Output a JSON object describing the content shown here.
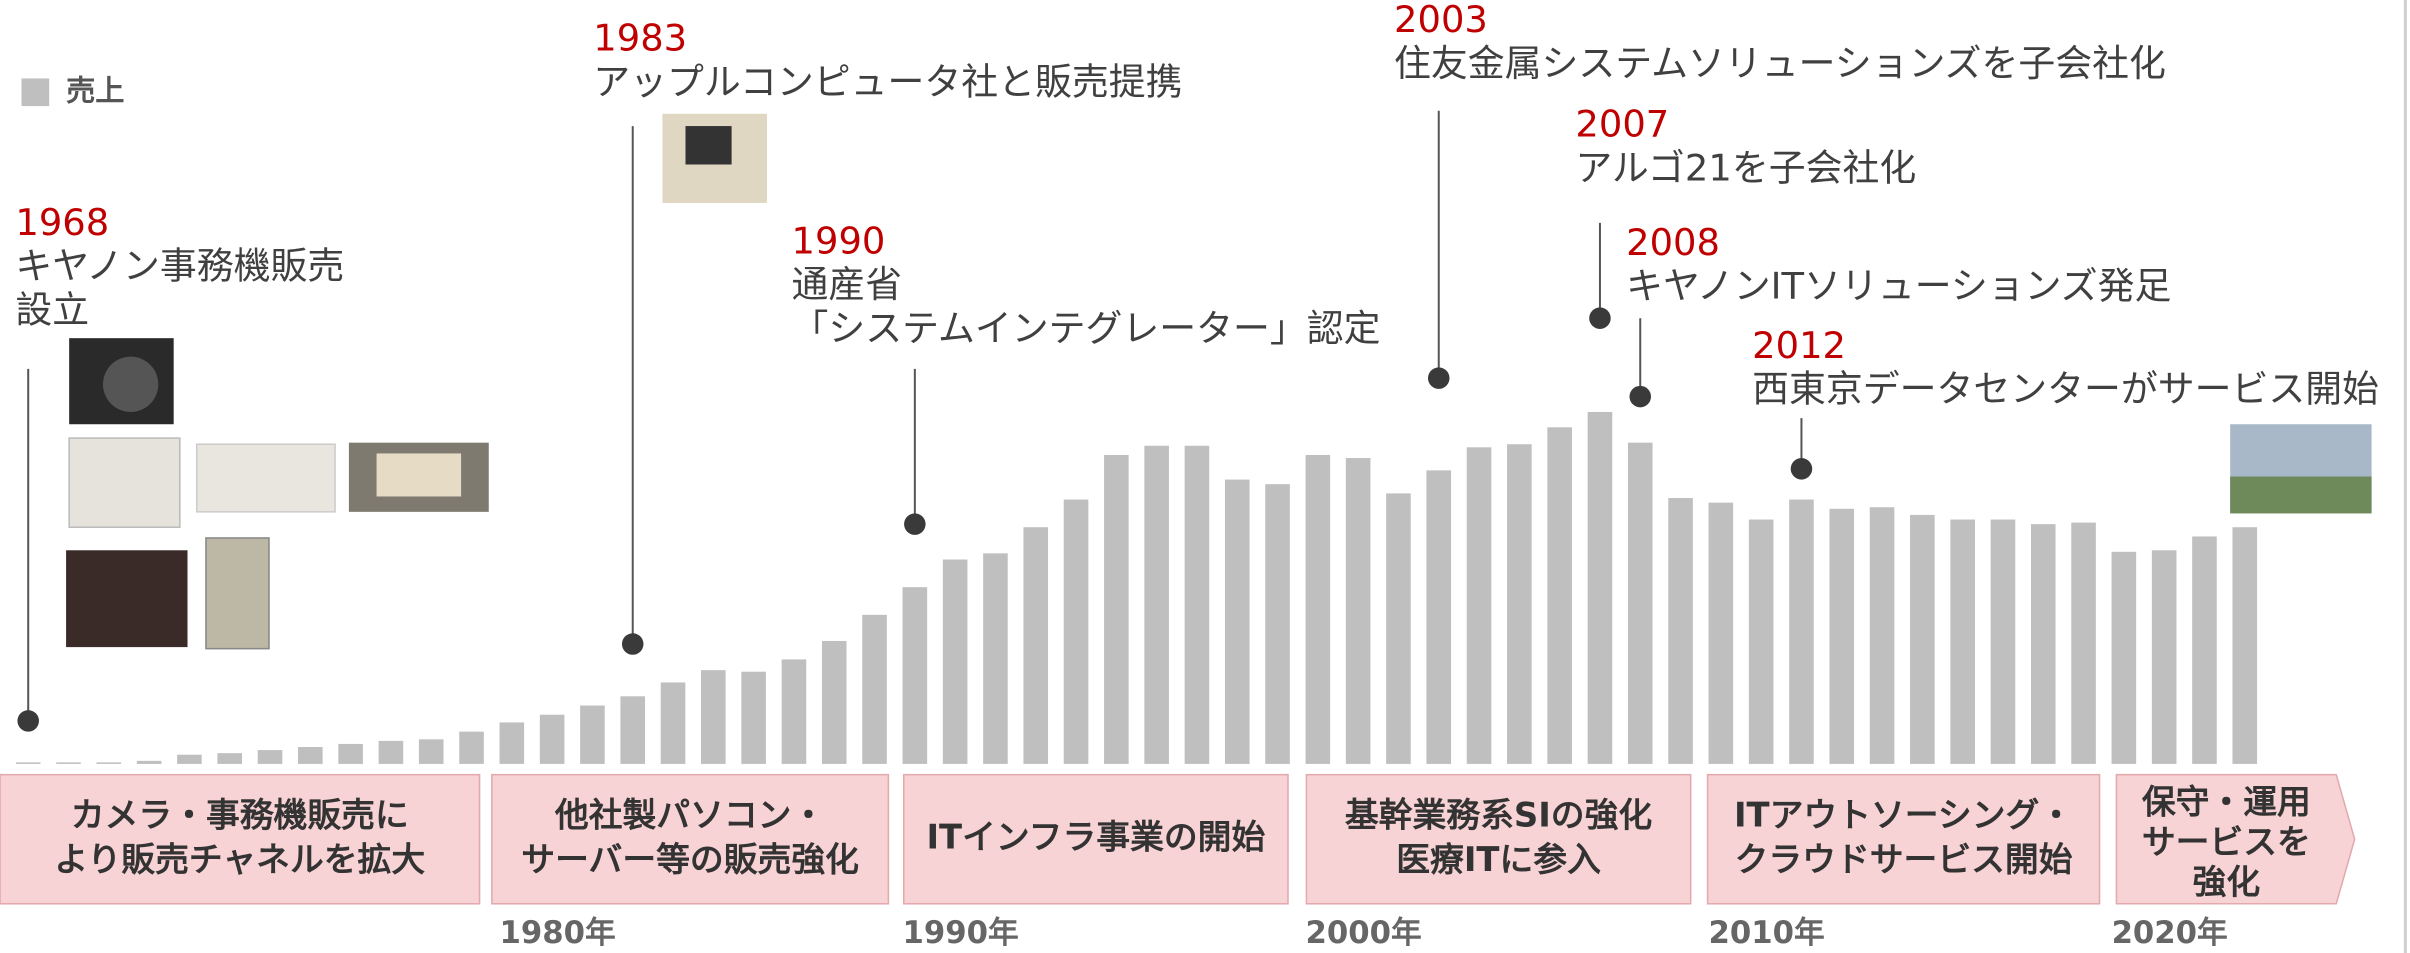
{
  "chart_data": {
    "type": "bar",
    "x": [
      1968,
      1969,
      1970,
      1971,
      1972,
      1973,
      1974,
      1975,
      1976,
      1977,
      1978,
      1979,
      1980,
      1981,
      1982,
      1983,
      1984,
      1985,
      1986,
      1987,
      1988,
      1989,
      1990,
      1991,
      1992,
      1993,
      1994,
      1995,
      1996,
      1997,
      1998,
      1999,
      2000,
      2001,
      2002,
      2003,
      2004,
      2005,
      2006,
      2007,
      2008,
      2009,
      2010,
      2011,
      2012,
      2013,
      2014,
      2015,
      2016,
      2017,
      2018,
      2019,
      2020,
      2021,
      2022,
      2023
    ],
    "series": [
      {
        "name": "売上",
        "color": "#bfbfbf",
        "values": [
          1,
          1,
          1,
          2,
          6,
          7,
          9,
          11,
          13,
          15,
          16,
          21,
          27,
          32,
          38,
          44,
          53,
          61,
          60,
          68,
          80,
          97,
          115,
          133,
          137,
          154,
          172,
          201,
          207,
          207,
          185,
          182,
          201,
          199,
          176,
          191,
          206,
          208,
          219,
          229,
          209,
          173,
          170,
          159,
          172,
          166,
          167,
          162,
          159,
          159,
          156,
          157,
          138,
          139,
          148,
          154
        ]
      }
    ],
    "xlim": [
      1967.3,
      2027.1
    ],
    "xticks": [
      {
        "value": 1980,
        "label": "1980年"
      },
      {
        "value": 1990,
        "label": "1990年"
      },
      {
        "value": 2000,
        "label": "2000年"
      },
      {
        "value": 2010,
        "label": "2010年"
      },
      {
        "value": 2020,
        "label": "2020年"
      }
    ],
    "annotations": [
      {
        "year": 1968,
        "lines": [
          "キヤノン事務機販売",
          "設立"
        ]
      },
      {
        "year": 1983,
        "lines": [
          "アップルコンピュータ社と販売提携"
        ]
      },
      {
        "year": 1990,
        "lines": [
          "通産省",
          "「システムインテグレーター」認定"
        ]
      },
      {
        "year": 2003,
        "lines": [
          "住友金属システムソリューションズを子会社化"
        ]
      },
      {
        "year": 2007,
        "lines": [
          "アルゴ21を子会社化"
        ]
      },
      {
        "year": 2008,
        "lines": [
          "キヤノンITソリューションズ発足"
        ]
      },
      {
        "year": 2012,
        "lines": [
          "西東京データセンターがサービス開始"
        ]
      }
    ],
    "eras": [
      {
        "lines": [
          "カメラ・事務機販売に",
          "より販売チャネルを拡大"
        ]
      },
      {
        "lines": [
          "他社製パソコン・",
          "サーバー等の販売強化"
        ]
      },
      {
        "lines": [
          "ITインフラ事業の開始"
        ]
      },
      {
        "lines": [
          "基幹業務系SIの強化",
          "医療ITに参入"
        ]
      },
      {
        "lines": [
          "ITアウトソーシング・",
          "クラウドサービス開始"
        ]
      },
      {
        "lines": [
          "保守・運用",
          "サービスを",
          "強化"
        ]
      }
    ]
  }
}
